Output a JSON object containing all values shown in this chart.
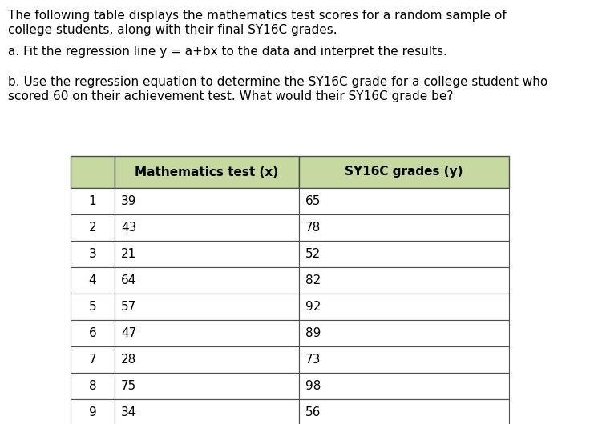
{
  "title_line1": "The following table displays the mathematics test scores for a random sample of",
  "title_line2": "college students, along with their final SY16C grades.",
  "question_a": "a. Fit the regression line y = a+bx to the data and interpret the results.",
  "question_b_line1": "b. Use the regression equation to determine the SY16C grade for a college student who",
  "question_b_line2": "scored 60 on their achievement test. What would their SY16C grade be?",
  "col_header_1": "Mathematics test (x)",
  "col_header_2": "SY16C grades (y)",
  "rows": [
    [
      1,
      39,
      65
    ],
    [
      2,
      43,
      78
    ],
    [
      3,
      21,
      52
    ],
    [
      4,
      64,
      82
    ],
    [
      5,
      57,
      92
    ],
    [
      6,
      47,
      89
    ],
    [
      7,
      28,
      73
    ],
    [
      8,
      75,
      98
    ],
    [
      9,
      34,
      56
    ]
  ],
  "header_bg_color": "#c6d9a0",
  "row_bg_color": "#ffffff",
  "table_border_color": "#4d4d4d",
  "text_color": "#000000",
  "background_color": "#ffffff",
  "font_size_text": 11.0,
  "font_size_table": 11.0,
  "fig_width": 7.46,
  "fig_height": 5.3,
  "dpi": 100
}
